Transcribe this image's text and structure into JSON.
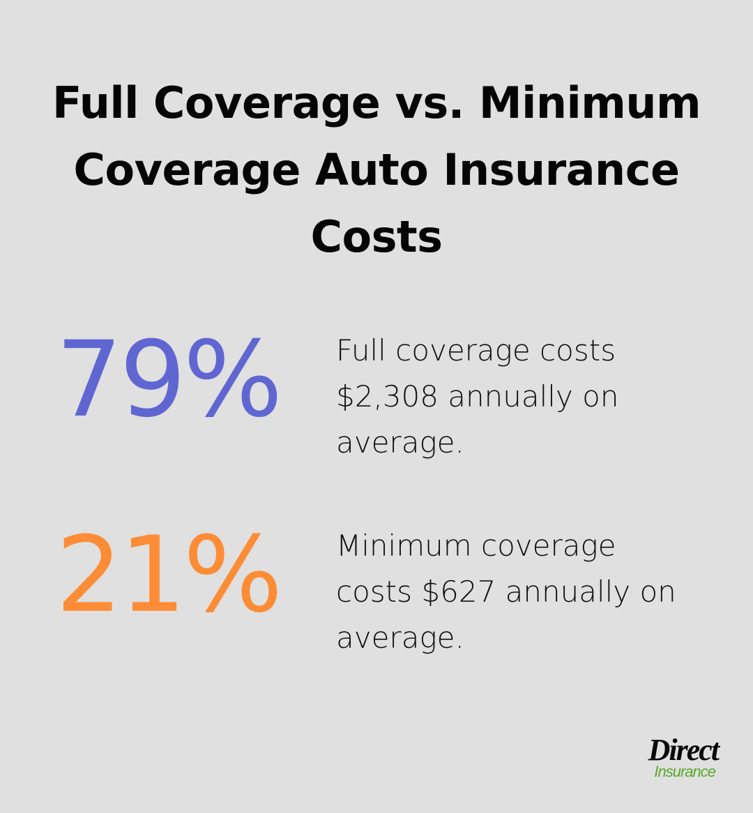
{
  "title": "Full Coverage vs. Minimum Coverage Auto Insurance Costs",
  "stats": [
    {
      "value": "79%",
      "color": "#6066d1",
      "text": "Full coverage costs $2,308 annually on average."
    },
    {
      "value": "21%",
      "color": "#fd8c36",
      "text": "Minimum coverage costs $627 annually on average."
    }
  ],
  "logo": {
    "line1": "Direct",
    "line2": "Insurance",
    "line1_color": "#0a0a0a",
    "line2_color": "#5aa82a"
  },
  "chart_data": {
    "type": "table",
    "title": "Full Coverage vs. Minimum Coverage Auto Insurance Costs",
    "categories": [
      "Full coverage",
      "Minimum coverage"
    ],
    "values": [
      79,
      21
    ],
    "annual_cost_usd": [
      2308,
      627
    ],
    "labels": [
      "Full coverage costs $2,308 annually on average.",
      "Minimum coverage costs $627 annually on average."
    ]
  }
}
